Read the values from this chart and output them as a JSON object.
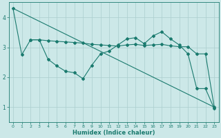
{
  "xlabel": "Humidex (Indice chaleur)",
  "bg_color": "#cce8e8",
  "line_color": "#1a7a6e",
  "grid_color": "#aacece",
  "xlim": [
    -0.5,
    23.5
  ],
  "ylim": [
    0.5,
    4.5
  ],
  "yticks": [
    1,
    2,
    3,
    4
  ],
  "xticks": [
    0,
    1,
    2,
    3,
    4,
    5,
    6,
    7,
    8,
    9,
    10,
    11,
    12,
    13,
    14,
    15,
    16,
    17,
    18,
    19,
    20,
    21,
    22,
    23
  ],
  "line1_x": [
    0,
    1,
    2,
    3,
    4,
    5,
    6,
    7,
    8,
    9,
    10,
    11,
    12,
    13,
    14,
    15,
    16,
    17,
    18,
    19,
    20,
    21,
    22,
    23
  ],
  "line1_y": [
    4.3,
    2.75,
    3.25,
    3.25,
    2.6,
    2.38,
    2.2,
    2.15,
    1.95,
    2.4,
    2.78,
    2.88,
    3.08,
    3.28,
    3.32,
    3.12,
    3.38,
    3.52,
    3.28,
    3.08,
    2.78,
    1.62,
    1.62,
    0.95
  ],
  "line2_x": [
    2,
    3,
    4,
    5,
    6,
    7,
    8,
    9,
    10,
    11,
    12,
    13,
    14,
    15,
    16,
    17,
    18,
    19,
    20,
    21,
    22,
    23
  ],
  "line2_y": [
    3.25,
    3.25,
    3.22,
    3.2,
    3.18,
    3.16,
    3.14,
    3.1,
    3.08,
    3.06,
    3.04,
    3.08,
    3.1,
    3.06,
    3.08,
    3.1,
    3.05,
    3.02,
    3.02,
    2.78,
    2.78,
    1.0
  ],
  "line3_x": [
    0,
    23
  ],
  "line3_y": [
    4.3,
    1.0
  ]
}
